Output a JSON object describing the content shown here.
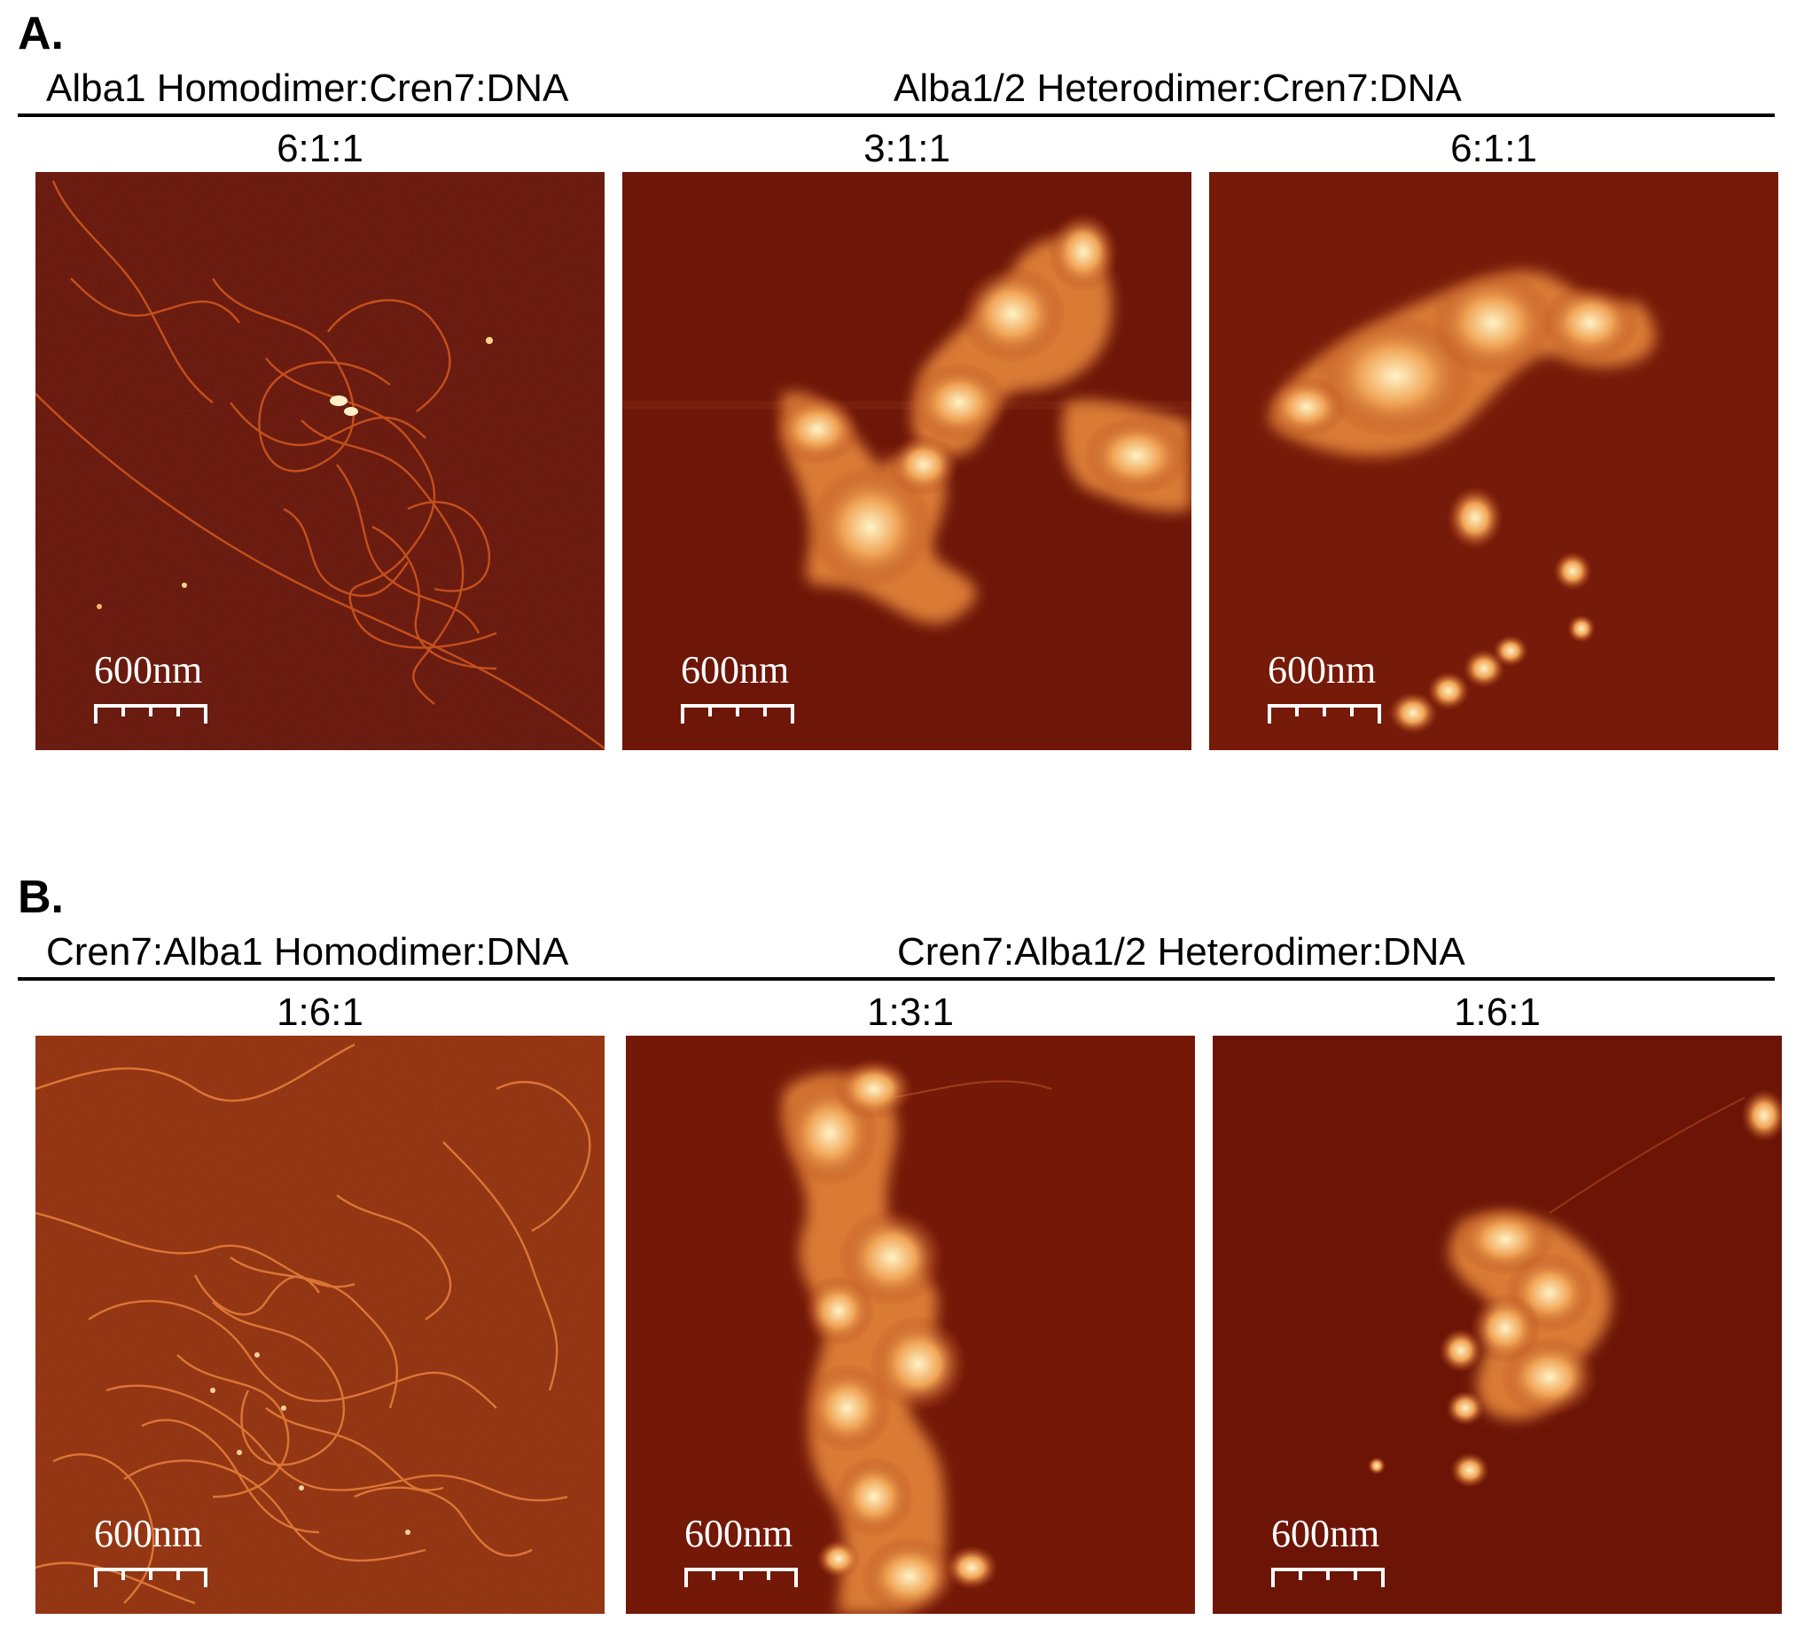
{
  "panels": [
    {
      "letter": "A.",
      "left_group": "Alba1 Homodimer:Cren7:DNA",
      "right_group": "Alba1/2 Heterodimer:Cren7:DNA",
      "images": [
        {
          "ratio": "6:1:1",
          "scale": "600nm"
        },
        {
          "ratio": "3:1:1",
          "scale": "600nm"
        },
        {
          "ratio": "6:1:1",
          "scale": "600nm"
        }
      ]
    },
    {
      "letter": "B.",
      "left_group": "Cren7:Alba1 Homodimer:DNA",
      "right_group": "Cren7:Alba1/2 Heterodimer:DNA",
      "images": [
        {
          "ratio": "1:6:1",
          "scale": "600nm"
        },
        {
          "ratio": "1:3:1",
          "scale": "600nm"
        },
        {
          "ratio": "1:6:1",
          "scale": "600nm"
        }
      ]
    }
  ],
  "colors": {
    "background_dark": "#5a0f06",
    "background_mid": "#7a1a08",
    "fiber": "#d9642a",
    "blob_core": "#fff2c0",
    "blob_mid": "#f2a455",
    "blob_edge": "#c2561c"
  }
}
